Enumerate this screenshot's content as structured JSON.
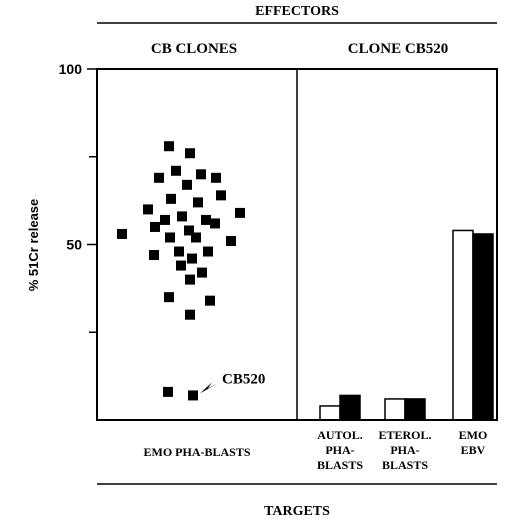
{
  "header": {
    "effectors_label": "EFFECTORS",
    "targets_label": "TARGETS"
  },
  "chart_data": [
    {
      "type": "scatter",
      "title": "CB CLONES",
      "ylabel": "% 51Cr release",
      "ylim": [
        0,
        100
      ],
      "yticks": [
        50,
        100
      ],
      "category": "EMO PHA-BLASTS",
      "points": [
        78,
        76,
        71,
        70,
        69,
        69,
        67,
        64,
        63,
        62,
        60,
        59,
        58,
        57,
        57,
        56,
        55,
        54,
        53,
        52,
        52,
        51,
        48,
        48,
        47,
        46,
        44,
        42,
        40,
        35,
        34,
        30,
        8,
        7
      ],
      "annotation": {
        "label": "CB520",
        "value": 7
      }
    },
    {
      "type": "bar",
      "title": "CLONE CB520",
      "categories": [
        [
          "AUTOL.",
          "PHA-",
          "BLASTS"
        ],
        [
          "ETEROL.",
          "PHA-",
          "BLASTS"
        ],
        [
          "EMO",
          "EBV"
        ]
      ],
      "series": [
        {
          "color": "#ffffff",
          "values": [
            4,
            6,
            54
          ]
        },
        {
          "color": "#000000",
          "values": [
            7,
            6,
            53
          ]
        }
      ]
    }
  ]
}
